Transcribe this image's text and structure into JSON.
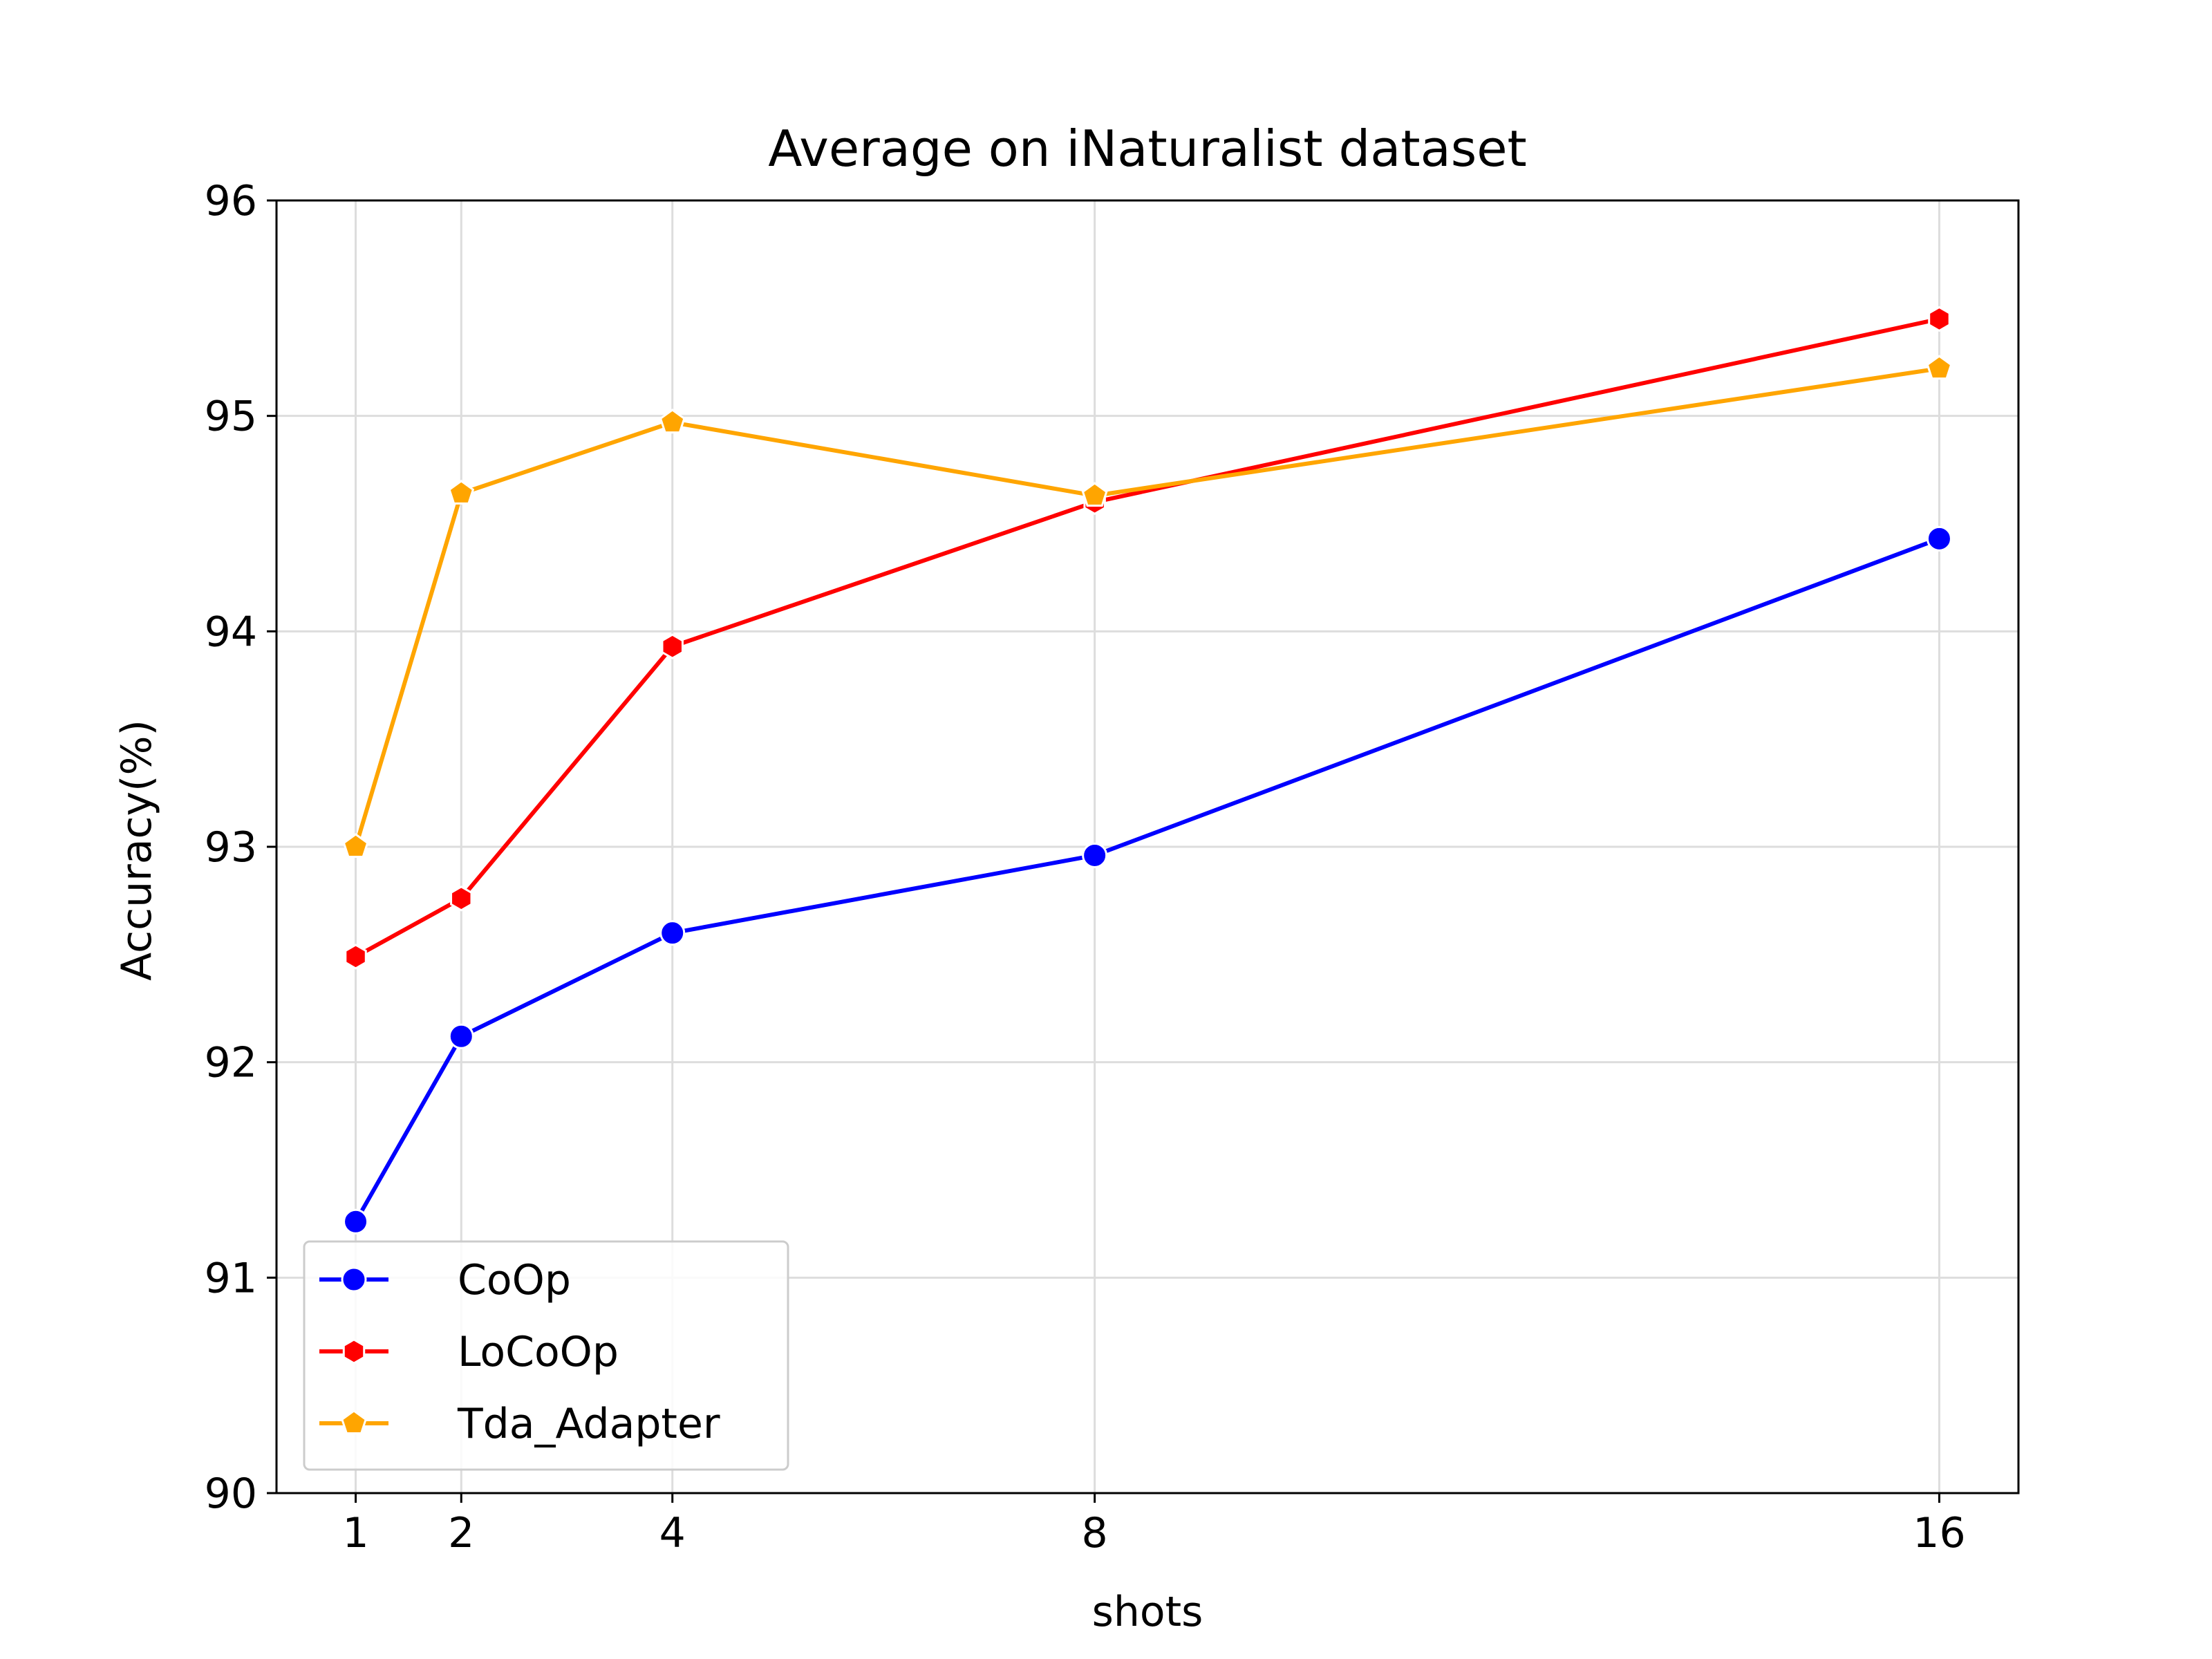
{
  "chart_data": {
    "type": "line",
    "title": "Average on iNaturalist dataset",
    "xlabel": "shots",
    "ylabel": "Accuracy(%)",
    "x": [
      1,
      2,
      4,
      8,
      16
    ],
    "xticks": [
      "1",
      "2",
      "4",
      "8",
      "16"
    ],
    "yticks": [
      "90",
      "91",
      "92",
      "93",
      "94",
      "95",
      "96"
    ],
    "xlim": [
      0.25,
      16.75
    ],
    "ylim": [
      90,
      96
    ],
    "grid": true,
    "legend_position": "lower-left",
    "series": [
      {
        "name": "CoOp",
        "color": "#0000ff",
        "marker": "circle",
        "values": [
          91.26,
          92.12,
          92.6,
          92.96,
          94.43
        ]
      },
      {
        "name": "LoCoOp",
        "color": "#ff0000",
        "marker": "hexagon",
        "values": [
          92.49,
          92.76,
          93.93,
          94.6,
          95.45
        ]
      },
      {
        "name": "Tda_Adapter",
        "color": "#ffa500",
        "marker": "pentagon",
        "values": [
          93.0,
          94.64,
          94.97,
          94.63,
          95.22
        ]
      }
    ]
  }
}
